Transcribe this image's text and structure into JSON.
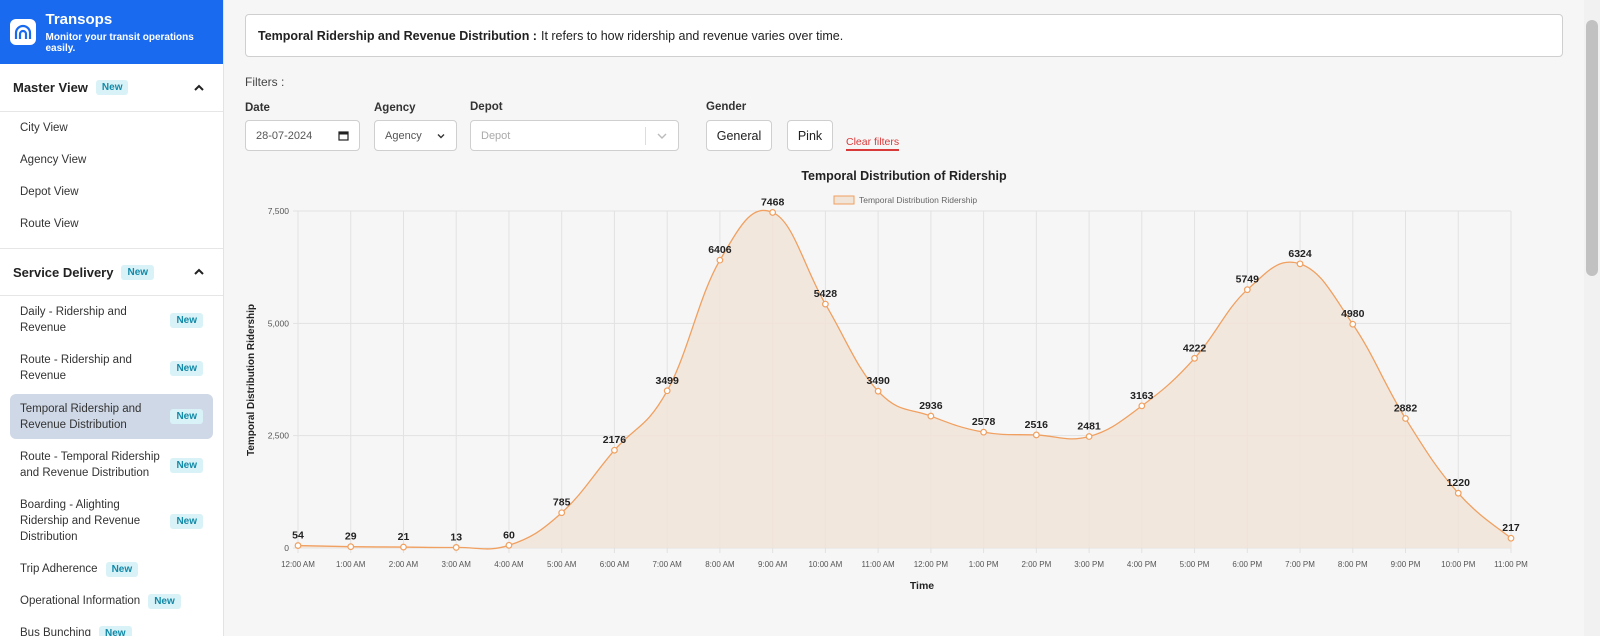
{
  "brand": {
    "name": "Transops",
    "tagline": "Monitor your transit operations easily."
  },
  "sidebar": {
    "sections": [
      {
        "title": "Master View",
        "badge": "New",
        "items": [
          {
            "label": "City View"
          },
          {
            "label": "Agency View"
          },
          {
            "label": "Depot View"
          },
          {
            "label": "Route View"
          }
        ]
      },
      {
        "title": "Service Delivery",
        "badge": "New",
        "items": [
          {
            "label": "Daily - Ridership and Revenue",
            "badge": "New"
          },
          {
            "label": "Route - Ridership and Revenue",
            "badge": "New"
          },
          {
            "label": "Temporal Ridership and Revenue Distribution",
            "badge": "New",
            "active": true
          },
          {
            "label": "Route - Temporal Ridership and Revenue Distribution",
            "badge": "New"
          },
          {
            "label": "Boarding - Alighting Ridership and Revenue Distribution",
            "badge": "New"
          },
          {
            "label": "Trip Adherence",
            "badge": "New"
          },
          {
            "label": "Operational Information",
            "badge": "New"
          },
          {
            "label": "Bus Bunching",
            "badge": "New"
          }
        ]
      }
    ]
  },
  "info": {
    "title": "Temporal Ridership and Revenue Distribution :",
    "text": "It refers to how ridership and revenue varies over time."
  },
  "filters": {
    "label": "Filters :",
    "date": {
      "label": "Date",
      "value": "28-07-2024"
    },
    "agency": {
      "label": "Agency",
      "value": "Agency"
    },
    "depot": {
      "label": "Depot",
      "placeholder": "Depot"
    },
    "gender": {
      "label": "Gender",
      "options": [
        "General",
        "Pink"
      ]
    },
    "clear": "Clear filters"
  },
  "colors": {
    "accent": "#1a6af0",
    "series_line": "#f0a060",
    "series_fill": "#f1e4d8",
    "clear": "#d83a3a"
  },
  "chart_data": {
    "type": "area",
    "title": "Temporal Distribution of Ridership",
    "xlabel": "Time",
    "ylabel": "Temporal Distribution Ridership",
    "ylim": [
      0,
      7500
    ],
    "yticks": [
      "0",
      "2,500",
      "5,000",
      "7,500"
    ],
    "grid": true,
    "legend": "top-center",
    "categories": [
      "12:00 AM",
      "1:00 AM",
      "2:00 AM",
      "3:00 AM",
      "4:00 AM",
      "5:00 AM",
      "6:00 AM",
      "7:00 AM",
      "8:00 AM",
      "9:00 AM",
      "10:00 AM",
      "11:00 AM",
      "12:00 PM",
      "1:00 PM",
      "2:00 PM",
      "3:00 PM",
      "4:00 PM",
      "5:00 PM",
      "6:00 PM",
      "7:00 PM",
      "8:00 PM",
      "9:00 PM",
      "10:00 PM",
      "11:00 PM"
    ],
    "series": [
      {
        "name": "Temporal Distribution Ridership",
        "values": [
          54,
          29,
          21,
          13,
          60,
          785,
          2176,
          3499,
          6406,
          7468,
          5428,
          3490,
          2936,
          2578,
          2516,
          2481,
          3163,
          4222,
          5749,
          6324,
          4980,
          2882,
          1220,
          217
        ]
      }
    ]
  }
}
